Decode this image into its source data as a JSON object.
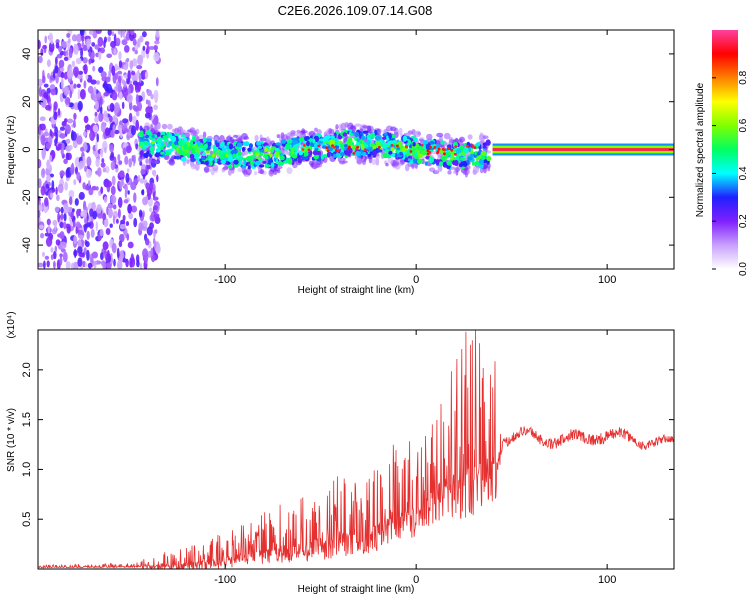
{
  "title": "C2E6.2026.109.07.14.G08",
  "chart_data": [
    {
      "type": "heatmap",
      "xlabel": "Height of straight line (km)",
      "ylabel": "Frequency (Hz)",
      "xlim": [
        -198,
        135
      ],
      "ylim": [
        -50,
        50
      ],
      "xticks": [
        -100,
        0,
        100
      ],
      "yticks": [
        -40,
        -20,
        0,
        20,
        40
      ],
      "xtick_labels": [
        "-100",
        "0",
        "100"
      ],
      "ytick_labels": [
        "-40",
        "-20",
        "0",
        "20",
        "40"
      ],
      "colorbar": {
        "label": "Normalized spectral amplitude",
        "range": [
          0,
          1
        ],
        "ticks": [
          0,
          0.2,
          0.4,
          0.6,
          0.8
        ],
        "tick_labels": [
          "0.0",
          "0.2",
          "0.4",
          "0.6",
          "0.8"
        ],
        "colors": [
          "#ffffff",
          "#c8a0ff",
          "#8020ff",
          "#2020ff",
          "#00ffff",
          "#00ff60",
          "#80ff00",
          "#ffff00",
          "#ff8000",
          "#ff0000",
          "#ff40a0"
        ]
      },
      "regions": [
        {
          "x_range": [
            -198,
            -135
          ],
          "freq_range": [
            -50,
            50
          ],
          "amplitude": 0.15,
          "description": "diffuse noise"
        },
        {
          "x_range": [
            -145,
            38
          ],
          "freq_center": 0,
          "freq_spread": 5,
          "amplitude": 0.45
        },
        {
          "x_range": [
            40,
            135
          ],
          "freq_center": 0,
          "freq_spread": 1,
          "amplitude": 0.95
        }
      ]
    },
    {
      "type": "line",
      "xlabel": "Height of straight line (km)",
      "ylabel": "SNR (10 * v/v)",
      "y_multiplier": "(x10⁴)",
      "xlim": [
        -198,
        135
      ],
      "ylim": [
        0,
        2.4
      ],
      "xticks": [
        -100,
        0,
        100
      ],
      "yticks": [
        0.5,
        1.0,
        1.5,
        2.0
      ],
      "xtick_labels": [
        "-100",
        "0",
        "100"
      ],
      "ytick_labels": [
        "0.5",
        "1.0",
        "1.5",
        "2.0"
      ],
      "color": "#e53030",
      "envelope": [
        {
          "x": -198,
          "y": 0.02,
          "amp": 0.01
        },
        {
          "x": -150,
          "y": 0.03,
          "amp": 0.02
        },
        {
          "x": -125,
          "y": 0.05,
          "amp": 0.08
        },
        {
          "x": -100,
          "y": 0.12,
          "amp": 0.15
        },
        {
          "x": -75,
          "y": 0.22,
          "amp": 0.2
        },
        {
          "x": -50,
          "y": 0.32,
          "amp": 0.3
        },
        {
          "x": -25,
          "y": 0.42,
          "amp": 0.35
        },
        {
          "x": 0,
          "y": 0.65,
          "amp": 0.4
        },
        {
          "x": 15,
          "y": 0.95,
          "amp": 0.55
        },
        {
          "x": 30,
          "y": 1.05,
          "amp": 0.7
        },
        {
          "x": 42,
          "y": 1.15,
          "amp": 0.6
        },
        {
          "x": 45,
          "y": 1.3,
          "amp": 0.05
        },
        {
          "x": 60,
          "y": 1.35,
          "amp": 0.05
        },
        {
          "x": 75,
          "y": 1.28,
          "amp": 0.06
        },
        {
          "x": 95,
          "y": 1.35,
          "amp": 0.06
        },
        {
          "x": 115,
          "y": 1.3,
          "amp": 0.05
        },
        {
          "x": 135,
          "y": 1.25,
          "amp": 0.04
        }
      ]
    }
  ]
}
